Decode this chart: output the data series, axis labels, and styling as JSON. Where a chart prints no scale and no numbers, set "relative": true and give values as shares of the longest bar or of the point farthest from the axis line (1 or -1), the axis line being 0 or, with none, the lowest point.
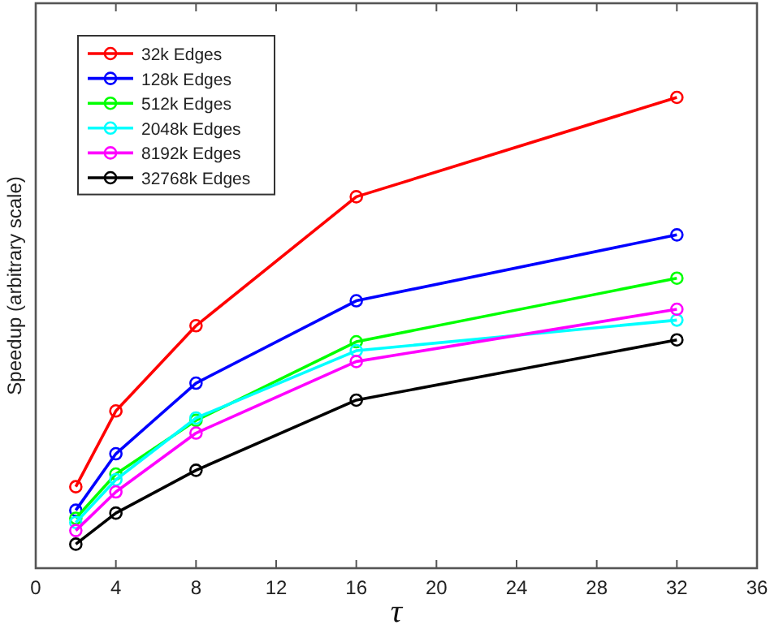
{
  "chart_data": {
    "type": "line",
    "relative": true,
    "xlabel": "τ",
    "ylabel": "Speedup (arbitrary scale)",
    "x": [
      2,
      4,
      8,
      16,
      32
    ],
    "xlim": [
      0,
      36
    ],
    "xticks": [
      0,
      4,
      8,
      12,
      16,
      20,
      24,
      28,
      32,
      36
    ],
    "legend": "top left",
    "marker": "circle",
    "line_style": "solid",
    "grid": false,
    "series": [
      {
        "name": "32k Edges",
        "color": "#ff0000",
        "values": [
          0.173,
          0.334,
          0.515,
          0.789,
          1
        ]
      },
      {
        "name": "128k Edges",
        "color": "#0000ff",
        "values": [
          0.123,
          0.243,
          0.393,
          0.568,
          0.708
        ]
      },
      {
        "name": "512k Edges",
        "color": "#00ff00",
        "values": [
          0.106,
          0.2,
          0.314,
          0.481,
          0.616
        ]
      },
      {
        "name": "2048k Edges",
        "color": "#00ffff",
        "values": [
          0.097,
          0.188,
          0.319,
          0.462,
          0.527
        ]
      },
      {
        "name": "8192k Edges",
        "color": "#ff00ff",
        "values": [
          0.08,
          0.162,
          0.287,
          0.439,
          0.55
        ]
      },
      {
        "name": "32768k Edges",
        "color": "#000000",
        "values": [
          0.051,
          0.117,
          0.208,
          0.357,
          0.485
        ]
      }
    ]
  }
}
